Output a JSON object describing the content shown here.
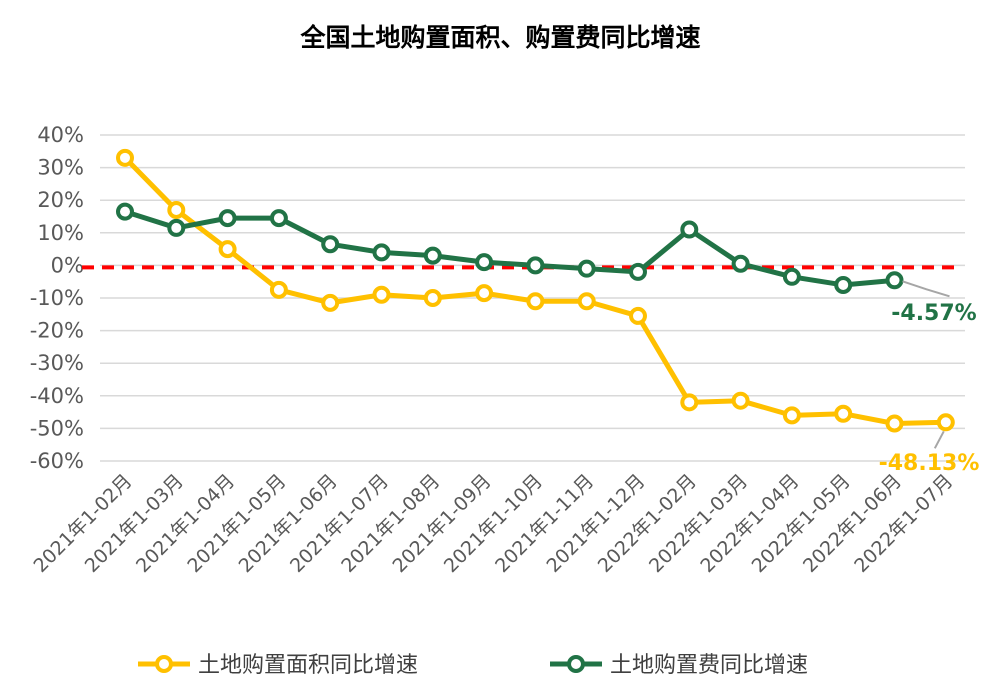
{
  "chart_data": {
    "type": "line",
    "title": "全国土地购置面积、购置费同比增速",
    "categories": [
      "2021年1-02月",
      "2021年1-03月",
      "2021年1-04月",
      "2021年1-05月",
      "2021年1-06月",
      "2021年1-07月",
      "2021年1-08月",
      "2021年1-09月",
      "2021年1-10月",
      "2021年1-11月",
      "2021年1-12月",
      "2022年1-02月",
      "2022年1-03月",
      "2022年1-04月",
      "2022年1-05月",
      "2022年1-06月",
      "2022年1-07月"
    ],
    "y_ticks": [
      "40%",
      "30%",
      "20%",
      "10%",
      "0%",
      "-10%",
      "-20%",
      "-30%",
      "-40%",
      "-50%",
      "-60%"
    ],
    "ylim": [
      -60,
      40
    ],
    "grid": true,
    "legend_position": "bottom",
    "reference_line": {
      "value": 0,
      "color": "#ff0000",
      "style": "dashed"
    },
    "series": [
      {
        "name": "土地购置面积同比增速",
        "color": "#ffc000",
        "values": [
          33,
          17,
          5,
          -7.5,
          -11.5,
          -9,
          -10,
          -8.5,
          -11,
          -11,
          -15.5,
          -42,
          -41.5,
          -46,
          -45.5,
          -48.5,
          -48.13
        ],
        "end_label": "-48.13%"
      },
      {
        "name": "土地购置费同比增速",
        "color": "#217346",
        "values": [
          16.5,
          11.5,
          14.5,
          14.5,
          6.5,
          4,
          3,
          1,
          0,
          -1,
          -2,
          11,
          0.5,
          -3.5,
          -6,
          -4.57,
          null
        ],
        "end_label": "-4.57%"
      }
    ]
  }
}
